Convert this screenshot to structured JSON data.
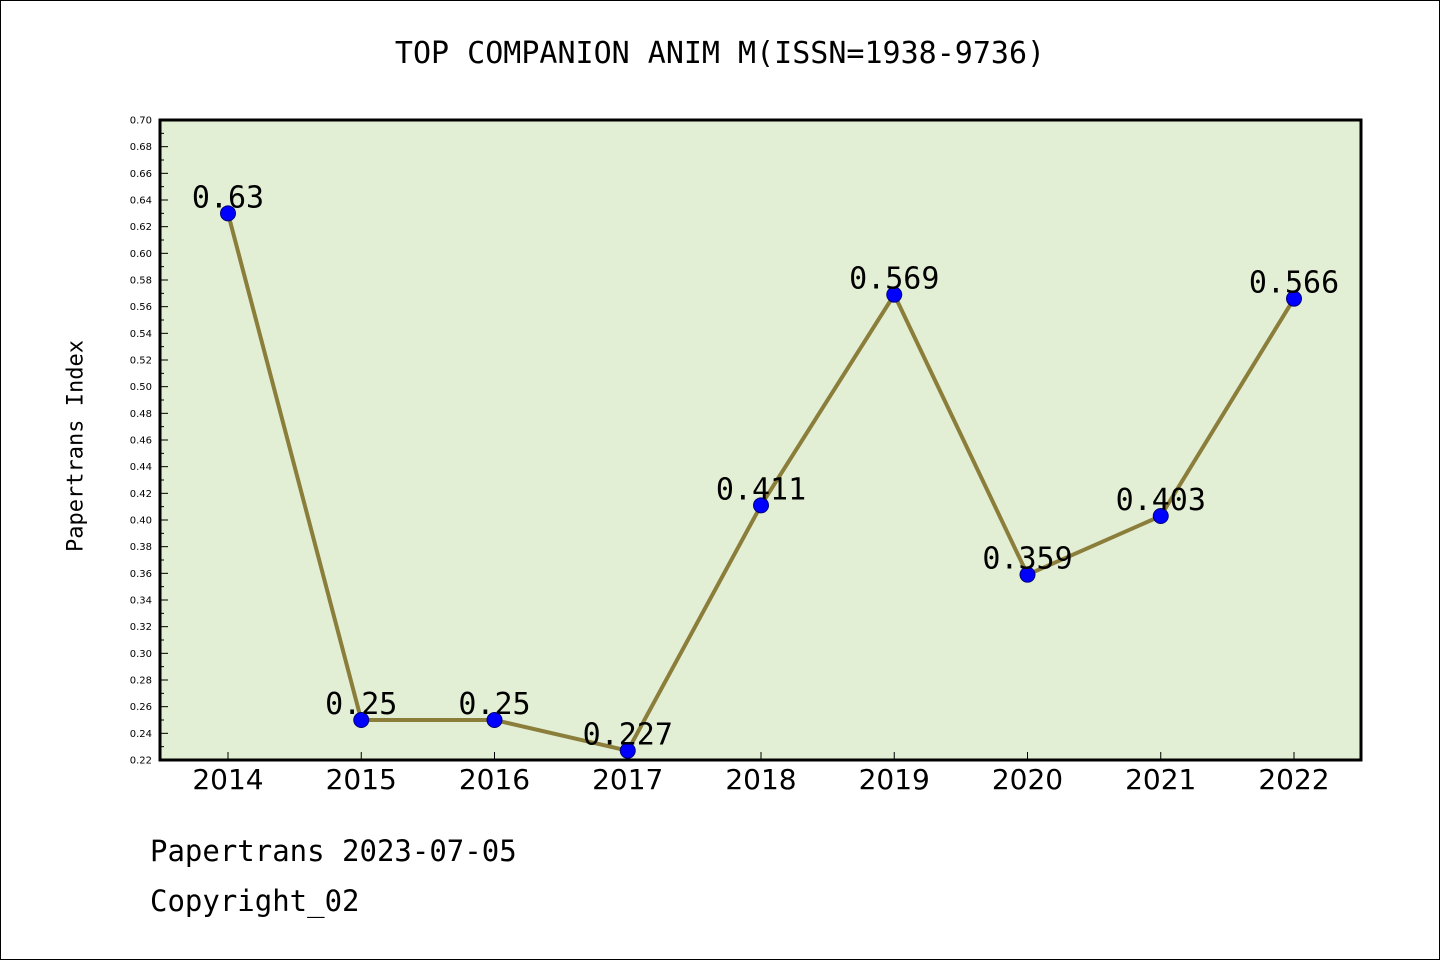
{
  "chart_data": {
    "type": "line",
    "title": "TOP COMPANION ANIM M(ISSN=1938-9736)",
    "xlabel": "",
    "ylabel": "Papertrans Index",
    "categories": [
      "2014",
      "2015",
      "2016",
      "2017",
      "2018",
      "2019",
      "2020",
      "2021",
      "2022"
    ],
    "series": [
      {
        "values": [
          0.63,
          0.25,
          0.25,
          0.227,
          0.411,
          0.569,
          0.359,
          0.403,
          0.566
        ],
        "labels": [
          "0.63",
          "0.25",
          "0.25",
          "0.227",
          "0.411",
          "0.569",
          "0.359",
          "0.403",
          "0.566"
        ],
        "line_color": "#8b7d3a",
        "marker_color": "#0000ff"
      }
    ],
    "ylim": [
      0.22,
      0.7
    ],
    "yticks": [
      "0.22",
      "0.24",
      "0.26",
      "0.28",
      "0.30",
      "0.32",
      "0.34",
      "0.36",
      "0.38",
      "0.40",
      "0.42",
      "0.44",
      "0.46",
      "0.48",
      "0.50",
      "0.52",
      "0.54",
      "0.56",
      "0.58",
      "0.60",
      "0.62",
      "0.64",
      "0.66",
      "0.68",
      "0.70"
    ],
    "grid": false,
    "plot_background": "#e2efd5"
  },
  "footer": {
    "date_line": "Papertrans 2023-07-05",
    "copyright_line": "Copyright_02"
  }
}
